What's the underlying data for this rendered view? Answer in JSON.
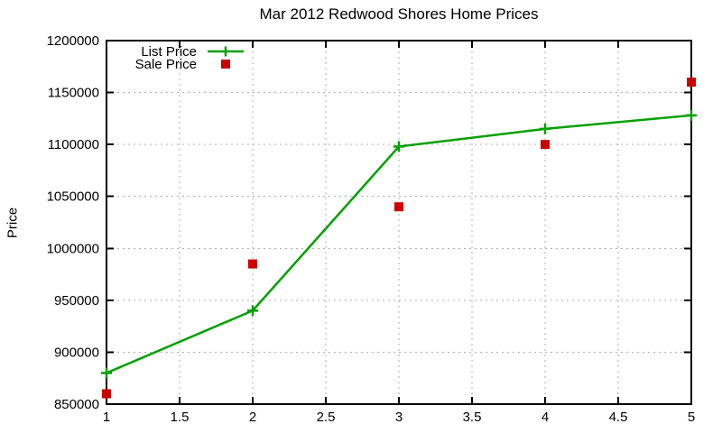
{
  "chart_data": {
    "type": "line",
    "title": "Mar 2012 Redwood Shores Home Prices",
    "xlabel": "",
    "ylabel": "Price",
    "xlim": [
      1,
      5
    ],
    "ylim": [
      850000,
      1200000
    ],
    "xticks": [
      1,
      1.5,
      2,
      2.5,
      3,
      3.5,
      4,
      4.5,
      5
    ],
    "yticks": [
      850000,
      900000,
      950000,
      1000000,
      1050000,
      1100000,
      1150000,
      1200000
    ],
    "grid": true,
    "legend_position": "top-left-inside",
    "background": "#ffffff",
    "grid_color": "#b0b0b0",
    "border_color": "#000000",
    "x": [
      1,
      2,
      3,
      4,
      5
    ],
    "series": [
      {
        "name": "List Price",
        "style": "line-with-plus-markers",
        "color": "#00a000",
        "values": [
          880000,
          940000,
          1098000,
          1115000,
          1128000
        ]
      },
      {
        "name": "Sale Price",
        "style": "square-points",
        "color": "#cc0000",
        "values": [
          860000,
          985000,
          1040000,
          1100000,
          1160000
        ]
      }
    ]
  }
}
